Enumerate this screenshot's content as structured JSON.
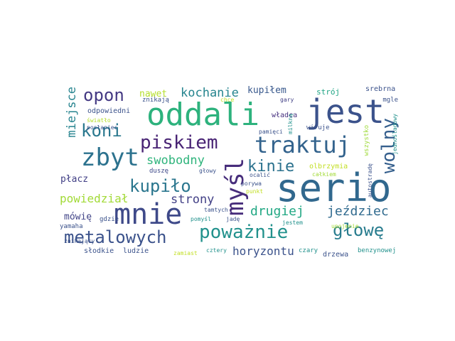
{
  "words": [
    {
      "id": "serio",
      "text": "serio",
      "color": "#31688e"
    },
    {
      "id": "jest",
      "text": "jest",
      "color": "#3b528b"
    },
    {
      "id": "oddali",
      "text": "oddali",
      "color": "#2db27d"
    },
    {
      "id": "mnie",
      "text": "mnie",
      "color": "#3e4989"
    },
    {
      "id": "traktuj",
      "text": "traktuj",
      "color": "#33638d"
    },
    {
      "id": "mysl",
      "text": "myśl",
      "color": "#472d7b"
    },
    {
      "id": "zbyt",
      "text": "zbyt",
      "color": "#2c728e"
    },
    {
      "id": "powaznie",
      "text": "poważnie",
      "color": "#21918c"
    },
    {
      "id": "metalowych",
      "text": "metalowych",
      "color": "#3b528b"
    },
    {
      "id": "piskiem",
      "text": "piskiem",
      "color": "#482374"
    },
    {
      "id": "glowe",
      "text": "głowę",
      "color": "#287c8e"
    },
    {
      "id": "wolny",
      "text": "wolny",
      "color": "#355f8d"
    },
    {
      "id": "koni",
      "text": "koni",
      "color": "#2a788e"
    },
    {
      "id": "kinie",
      "text": "kinie",
      "color": "#2c728e"
    },
    {
      "id": "kupilo",
      "text": "kupiło",
      "color": "#2a768e"
    },
    {
      "id": "opon",
      "text": "opon",
      "color": "#443983"
    },
    {
      "id": "drugiej",
      "text": "drugiej",
      "color": "#22a884"
    },
    {
      "id": "jezdziec",
      "text": "jeździec",
      "color": "#306a8e"
    },
    {
      "id": "kochanie",
      "text": "kochanie",
      "color": "#25848e"
    },
    {
      "id": "miejsce",
      "text": "miejsce",
      "color": "#25838e"
    },
    {
      "id": "swobodny",
      "text": "swobodny",
      "color": "#2fb47c"
    },
    {
      "id": "strony",
      "text": "strony",
      "color": "#424086"
    },
    {
      "id": "powiedzial",
      "text": "powiedział",
      "color": "#a2da37"
    },
    {
      "id": "horyzontu",
      "text": "horyzontu",
      "color": "#3b528b"
    },
    {
      "id": "nawet",
      "text": "nawet",
      "color": "#b5de2b"
    },
    {
      "id": "kupilem",
      "text": "kupiłem",
      "color": "#38588c"
    },
    {
      "id": "plácz",
      "text": "płacz",
      "color": "#424086"
    },
    {
      "id": "mowie",
      "text": "mówię",
      "color": "#414487"
    },
    {
      "id": "stroj",
      "text": "strój",
      "color": "#21a585"
    },
    {
      "id": "srebrna",
      "text": "srebrna",
      "color": "#3b528b"
    },
    {
      "id": "wszystko",
      "text": "wszystko",
      "color": "#9fda3a"
    },
    {
      "id": "odpowiedni",
      "text": "odpowiedni",
      "color": "#3b528b"
    },
    {
      "id": "znikaja",
      "text": "znikają",
      "color": "#3b528b"
    },
    {
      "id": "chce",
      "text": "chce",
      "color": "#c2df23"
    },
    {
      "id": "gary",
      "text": "gary",
      "color": "#424086"
    },
    {
      "id": "mgle",
      "text": "mgle",
      "color": "#3b528b"
    },
    {
      "id": "wladca",
      "text": "władca",
      "color": "#46307e"
    },
    {
      "id": "milkna",
      "text": "milkną",
      "color": "#21918c"
    },
    {
      "id": "wiruje",
      "text": "wiruje",
      "color": "#3b528b"
    },
    {
      "id": "swiatlo",
      "text": "światło",
      "color": "#b5de2b"
    },
    {
      "id": "poslaniec",
      "text": "posłaniec",
      "color": "#3b528b"
    },
    {
      "id": "pamieci",
      "text": "pamięci",
      "color": "#3b528b"
    },
    {
      "id": "jednosladowy",
      "text": "jednośladowy",
      "color": "#21918c"
    },
    {
      "id": "autostrade",
      "text": "autostradę",
      "color": "#3b528b"
    },
    {
      "id": "olbrzymia",
      "text": "olbrzymia",
      "color": "#c2df23"
    },
    {
      "id": "dusze",
      "text": "duszę",
      "color": "#3e4989"
    },
    {
      "id": "glowy",
      "text": "głowy",
      "color": "#3b528b"
    },
    {
      "id": "ocalic",
      "text": "ocalić",
      "color": "#3b528b"
    },
    {
      "id": "calkiem",
      "text": "całkiem",
      "color": "#a2da37"
    },
    {
      "id": "porywa",
      "text": "porywa",
      "color": "#3b528b"
    },
    {
      "id": "punkt",
      "text": "punkt",
      "color": "#c2df23"
    },
    {
      "id": "tamtych",
      "text": "tamtych",
      "color": "#3b528b"
    },
    {
      "id": "gdzie",
      "text": "gdzie",
      "color": "#3b528b"
    },
    {
      "id": "pomysl",
      "text": "pomyśl",
      "color": "#21918c"
    },
    {
      "id": "jade",
      "text": "jadę",
      "color": "#3b528b"
    },
    {
      "id": "jestem",
      "text": "jestem",
      "color": "#21918c"
    },
    {
      "id": "upojenie",
      "text": "upojenie",
      "color": "#a2da37"
    },
    {
      "id": "yamaha",
      "text": "yamaha",
      "color": "#3b528b"
    },
    {
      "id": "znikajacy",
      "text": "znikający",
      "color": "#3b528b"
    },
    {
      "id": "slodkie",
      "text": "słodkie",
      "color": "#3b528b"
    },
    {
      "id": "ludzie",
      "text": "ludzie",
      "color": "#3b528b"
    },
    {
      "id": "zamiast",
      "text": "zamiast",
      "color": "#c2df23"
    },
    {
      "id": "cztery",
      "text": "cztery",
      "color": "#21918c"
    },
    {
      "id": "czary",
      "text": "czary",
      "color": "#21918c"
    },
    {
      "id": "drzewa",
      "text": "drzewa",
      "color": "#3b528b"
    },
    {
      "id": "benzynowej",
      "text": "benzynowej",
      "color": "#21918c"
    }
  ]
}
